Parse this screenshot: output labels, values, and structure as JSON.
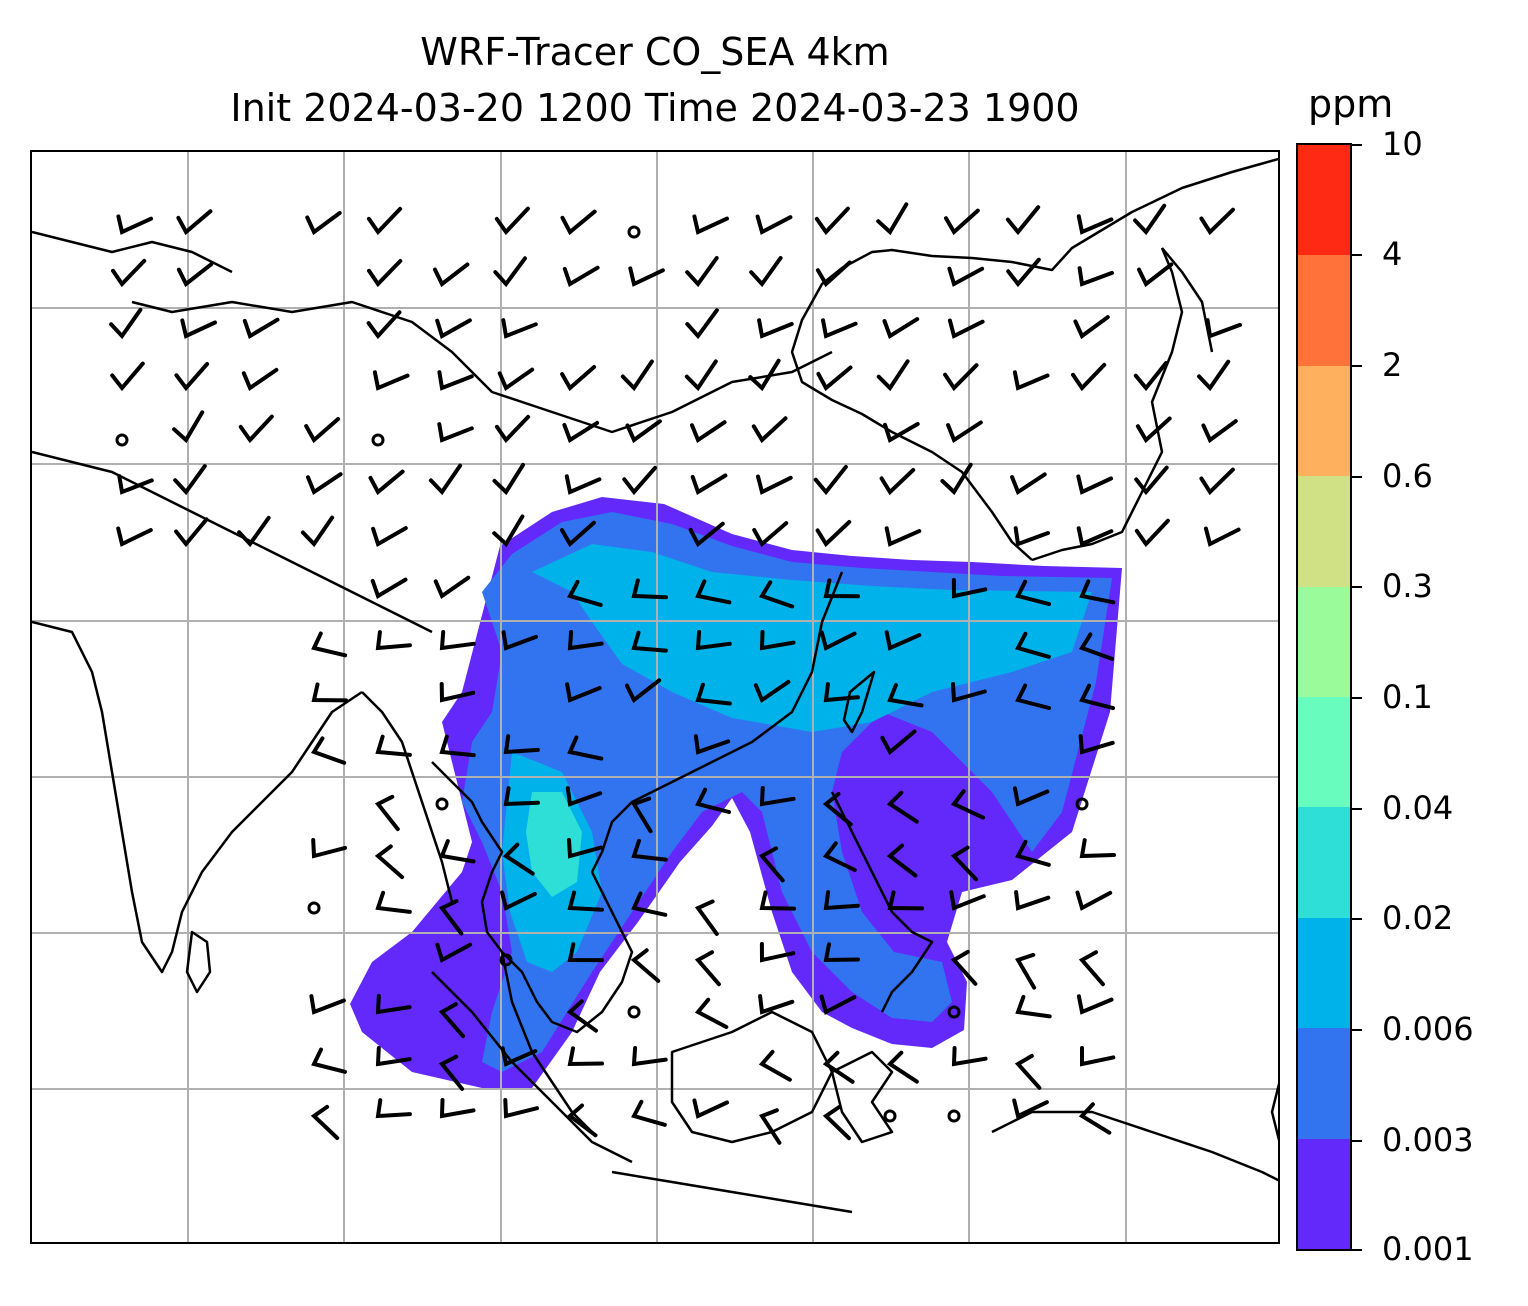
{
  "figure": {
    "title_line1": "WRF-Tracer CO_SEA 4km",
    "title_line2": "Init 2024-03-20 1200 Time 2024-03-23 1900"
  },
  "colorbar": {
    "unit": "ppm",
    "tick_labels": [
      "10",
      "4",
      "2",
      "0.6",
      "0.3",
      "0.1",
      "0.04",
      "0.02",
      "0.006",
      "0.003",
      "0.001"
    ],
    "colors": [
      "#ff2a14",
      "#ff733b",
      "#feb05e",
      "#d0e085",
      "#99fb99",
      "#68fcbf",
      "#2edfd8",
      "#00b2ea",
      "#3273f0",
      "#6229fa"
    ]
  },
  "map": {
    "gridlines": true,
    "layers": [
      "coastlines",
      "country-borders",
      "wind-barbs",
      "tracer-concentration-fill"
    ],
    "field": "CO_SEA"
  }
}
